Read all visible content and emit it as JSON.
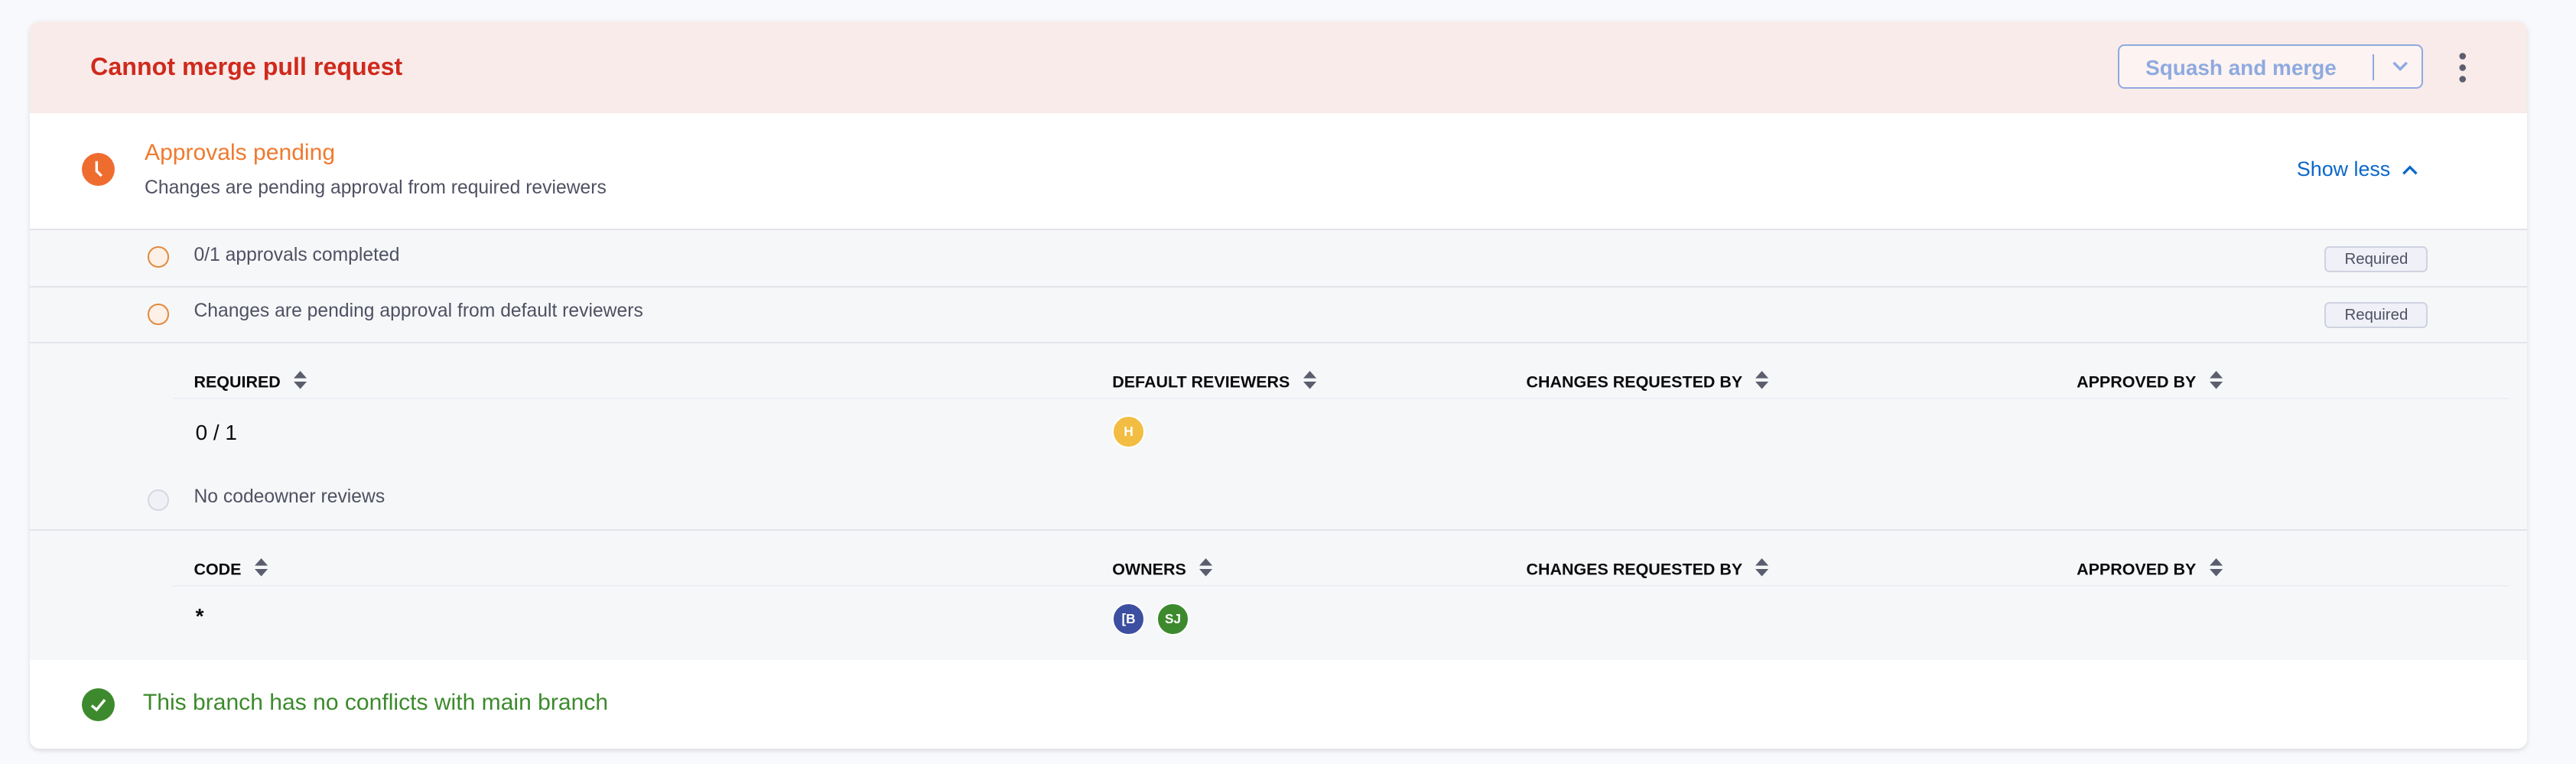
{
  "header": {
    "title": "Cannot merge pull request",
    "merge_button": "Squash and merge",
    "colors": {
      "title": "#cf2a1c",
      "background": "#f9ebea"
    }
  },
  "approvals": {
    "title": "Approvals pending",
    "subtitle": "Changes are pending approval from required reviewers",
    "toggle": "Show less",
    "icon": "clock-icon"
  },
  "checks": [
    {
      "label": "0/1 approvals completed",
      "badge": "Required"
    },
    {
      "label": "Changes are pending approval from default reviewers",
      "badge": "Required"
    }
  ],
  "reviewers_table": {
    "columns": [
      "REQUIRED",
      "DEFAULT REVIEWERS",
      "CHANGES REQUESTED BY",
      "APPROVED BY"
    ],
    "rows": [
      {
        "required": "0 / 1",
        "default_reviewers": [
          {
            "initials": "H",
            "color": "#f2bd42"
          }
        ]
      }
    ]
  },
  "codeowners": {
    "label": "No codeowner reviews"
  },
  "codeowners_table": {
    "columns": [
      "CODE",
      "OWNERS",
      "CHANGES REQUESTED BY",
      "APPROVED BY"
    ],
    "rows": [
      {
        "code": "*",
        "owners": [
          {
            "initials": "[B",
            "color": "#3d4fa0"
          },
          {
            "initials": "SJ",
            "color": "#3d8a2e"
          }
        ]
      }
    ]
  },
  "conflicts": {
    "label": "This branch has no conflicts with main branch",
    "color": "#3b8a2c"
  }
}
